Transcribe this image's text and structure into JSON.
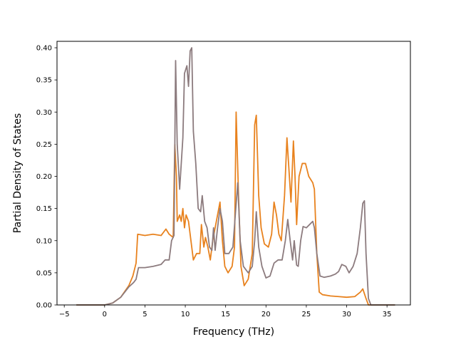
{
  "chart_data": {
    "type": "line",
    "title": "",
    "xlabel": "Frequency (THz)",
    "ylabel": "Partial Density of States",
    "xlim": [
      -5.9,
      37.9
    ],
    "ylim": [
      0,
      0.41
    ],
    "xticks": [
      -5,
      0,
      5,
      10,
      15,
      20,
      25,
      30,
      35
    ],
    "yticks": [
      0.0,
      0.05,
      0.1,
      0.15,
      0.2,
      0.25,
      0.3,
      0.35,
      0.4
    ],
    "grid": false,
    "legend": "none",
    "series": [
      {
        "color": "#e8821e",
        "points": [
          [
            -3.5,
            0
          ],
          [
            0,
            0
          ],
          [
            1,
            0.003
          ],
          [
            2,
            0.012
          ],
          [
            3,
            0.03
          ],
          [
            3.5,
            0.045
          ],
          [
            3.9,
            0.065
          ],
          [
            4.1,
            0.11
          ],
          [
            5,
            0.108
          ],
          [
            6,
            0.11
          ],
          [
            7,
            0.108
          ],
          [
            7.6,
            0.118
          ],
          [
            8.0,
            0.11
          ],
          [
            8.5,
            0.105
          ],
          [
            8.7,
            0.25
          ],
          [
            8.9,
            0.2
          ],
          [
            9.0,
            0.13
          ],
          [
            9.3,
            0.14
          ],
          [
            9.5,
            0.13
          ],
          [
            9.7,
            0.15
          ],
          [
            9.9,
            0.12
          ],
          [
            10.1,
            0.14
          ],
          [
            10.4,
            0.13
          ],
          [
            10.7,
            0.1
          ],
          [
            11.0,
            0.07
          ],
          [
            11.4,
            0.08
          ],
          [
            11.8,
            0.08
          ],
          [
            12.0,
            0.125
          ],
          [
            12.3,
            0.09
          ],
          [
            12.5,
            0.105
          ],
          [
            12.8,
            0.09
          ],
          [
            13.1,
            0.07
          ],
          [
            13.4,
            0.1
          ],
          [
            13.7,
            0.12
          ],
          [
            14.0,
            0.14
          ],
          [
            14.3,
            0.16
          ],
          [
            14.6,
            0.1
          ],
          [
            14.9,
            0.06
          ],
          [
            15.3,
            0.05
          ],
          [
            15.8,
            0.06
          ],
          [
            16.1,
            0.09
          ],
          [
            16.3,
            0.3
          ],
          [
            16.6,
            0.17
          ],
          [
            16.9,
            0.06
          ],
          [
            17.3,
            0.03
          ],
          [
            17.8,
            0.04
          ],
          [
            18.3,
            0.08
          ],
          [
            18.6,
            0.28
          ],
          [
            18.8,
            0.295
          ],
          [
            19.1,
            0.17
          ],
          [
            19.4,
            0.12
          ],
          [
            19.8,
            0.095
          ],
          [
            20.3,
            0.09
          ],
          [
            20.7,
            0.11
          ],
          [
            21.0,
            0.16
          ],
          [
            21.3,
            0.14
          ],
          [
            21.6,
            0.11
          ],
          [
            21.9,
            0.1
          ],
          [
            22.3,
            0.17
          ],
          [
            22.6,
            0.26
          ],
          [
            22.9,
            0.2
          ],
          [
            23.1,
            0.16
          ],
          [
            23.4,
            0.255
          ],
          [
            23.6,
            0.2
          ],
          [
            23.8,
            0.125
          ],
          [
            24.1,
            0.2
          ],
          [
            24.5,
            0.22
          ],
          [
            24.9,
            0.22
          ],
          [
            25.3,
            0.2
          ],
          [
            25.8,
            0.19
          ],
          [
            26.0,
            0.18
          ],
          [
            26.3,
            0.08
          ],
          [
            26.6,
            0.02
          ],
          [
            27.0,
            0.016
          ],
          [
            28.0,
            0.014
          ],
          [
            29.0,
            0.013
          ],
          [
            30.0,
            0.012
          ],
          [
            31.0,
            0.013
          ],
          [
            31.7,
            0.02
          ],
          [
            32.0,
            0.025
          ],
          [
            32.4,
            0.01
          ],
          [
            32.7,
            0
          ],
          [
            36.0,
            0
          ]
        ]
      },
      {
        "color": "#8c7b7e",
        "points": [
          [
            -3.5,
            0
          ],
          [
            0,
            0
          ],
          [
            1,
            0.003
          ],
          [
            2,
            0.012
          ],
          [
            3,
            0.028
          ],
          [
            3.6,
            0.035
          ],
          [
            3.9,
            0.04
          ],
          [
            4.2,
            0.058
          ],
          [
            5,
            0.058
          ],
          [
            6,
            0.06
          ],
          [
            7,
            0.063
          ],
          [
            7.5,
            0.07
          ],
          [
            8.0,
            0.07
          ],
          [
            8.3,
            0.1
          ],
          [
            8.6,
            0.108
          ],
          [
            8.8,
            0.38
          ],
          [
            9.0,
            0.25
          ],
          [
            9.3,
            0.18
          ],
          [
            9.7,
            0.26
          ],
          [
            9.9,
            0.36
          ],
          [
            10.2,
            0.372
          ],
          [
            10.4,
            0.34
          ],
          [
            10.6,
            0.395
          ],
          [
            10.8,
            0.4
          ],
          [
            11.0,
            0.27
          ],
          [
            11.3,
            0.22
          ],
          [
            11.6,
            0.15
          ],
          [
            11.9,
            0.145
          ],
          [
            12.1,
            0.17
          ],
          [
            12.4,
            0.13
          ],
          [
            12.7,
            0.12
          ],
          [
            13.0,
            0.09
          ],
          [
            13.3,
            0.085
          ],
          [
            13.5,
            0.12
          ],
          [
            13.7,
            0.085
          ],
          [
            14.0,
            0.12
          ],
          [
            14.3,
            0.15
          ],
          [
            14.6,
            0.13
          ],
          [
            14.9,
            0.08
          ],
          [
            15.4,
            0.08
          ],
          [
            15.9,
            0.09
          ],
          [
            16.2,
            0.14
          ],
          [
            16.5,
            0.19
          ],
          [
            16.8,
            0.1
          ],
          [
            17.2,
            0.06
          ],
          [
            17.8,
            0.05
          ],
          [
            18.3,
            0.06
          ],
          [
            18.6,
            0.1
          ],
          [
            18.8,
            0.145
          ],
          [
            19.1,
            0.09
          ],
          [
            19.5,
            0.06
          ],
          [
            20.0,
            0.042
          ],
          [
            20.5,
            0.045
          ],
          [
            21.0,
            0.065
          ],
          [
            21.5,
            0.07
          ],
          [
            22.0,
            0.07
          ],
          [
            22.4,
            0.1
          ],
          [
            22.7,
            0.133
          ],
          [
            23.0,
            0.1
          ],
          [
            23.3,
            0.07
          ],
          [
            23.5,
            0.1
          ],
          [
            23.8,
            0.062
          ],
          [
            24.0,
            0.06
          ],
          [
            24.3,
            0.1
          ],
          [
            24.6,
            0.122
          ],
          [
            25.0,
            0.12
          ],
          [
            25.4,
            0.125
          ],
          [
            25.8,
            0.13
          ],
          [
            26.0,
            0.12
          ],
          [
            26.3,
            0.08
          ],
          [
            26.7,
            0.045
          ],
          [
            27.2,
            0.043
          ],
          [
            28.0,
            0.045
          ],
          [
            28.6,
            0.048
          ],
          [
            29.0,
            0.052
          ],
          [
            29.4,
            0.063
          ],
          [
            29.9,
            0.06
          ],
          [
            30.3,
            0.05
          ],
          [
            30.8,
            0.06
          ],
          [
            31.3,
            0.08
          ],
          [
            31.7,
            0.12
          ],
          [
            32.0,
            0.158
          ],
          [
            32.2,
            0.162
          ],
          [
            32.4,
            0.08
          ],
          [
            32.7,
            0.01
          ],
          [
            33.0,
            0
          ],
          [
            36.0,
            0
          ]
        ]
      }
    ]
  }
}
